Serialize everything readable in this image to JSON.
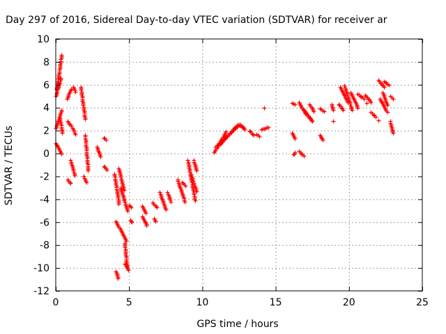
{
  "chart_data": {
    "type": "scatter",
    "title": "Day 297 of 2016, Sidereal Day-to-day VTEC variation (SDTVAR) for receiver ar",
    "xlabel": "GPS time / hours",
    "ylabel": "SDTVAR / TECUs",
    "xlim": [
      0,
      25
    ],
    "ylim": [
      -12,
      10
    ],
    "xticks": [
      0,
      5,
      10,
      15,
      20,
      25
    ],
    "yticks": [
      -12,
      -10,
      -8,
      -6,
      -4,
      -2,
      0,
      2,
      4,
      6,
      8,
      10
    ],
    "grid": true,
    "marker": "+",
    "color": "#ff0000",
    "segments": [
      {
        "x": [
          0.0,
          0.4
        ],
        "y": [
          2.2,
          3.8
        ]
      },
      {
        "x": [
          0.0,
          0.35
        ],
        "y": [
          5.0,
          6.6
        ]
      },
      {
        "x": [
          0.05,
          0.4
        ],
        "y": [
          5.6,
          8.6
        ]
      },
      {
        "x": [
          0.0,
          0.4
        ],
        "y": [
          0.9,
          0.0
        ]
      },
      {
        "x": [
          0.25,
          0.45
        ],
        "y": [
          3.2,
          1.8
        ]
      },
      {
        "x": [
          0.75,
          1.05
        ],
        "y": [
          4.8,
          5.6
        ]
      },
      {
        "x": [
          0.8,
          1.05
        ],
        "y": [
          2.8,
          2.4
        ]
      },
      {
        "x": [
          0.8,
          1.0
        ],
        "y": [
          -2.3,
          -2.6
        ]
      },
      {
        "x": [
          1.0,
          1.3
        ],
        "y": [
          -0.6,
          -1.9
        ]
      },
      {
        "x": [
          1.2,
          1.35
        ],
        "y": [
          5.8,
          5.4
        ]
      },
      {
        "x": [
          1.15,
          1.35
        ],
        "y": [
          2.2,
          1.7
        ]
      },
      {
        "x": [
          1.7,
          2.0
        ],
        "y": [
          5.8,
          3.0
        ]
      },
      {
        "x": [
          2.0,
          2.2
        ],
        "y": [
          1.6,
          -1.5
        ]
      },
      {
        "x": [
          1.9,
          2.1
        ],
        "y": [
          -2.0,
          -2.5
        ]
      },
      {
        "x": [
          2.8,
          3.05
        ],
        "y": [
          0.6,
          -0.3
        ]
      },
      {
        "x": [
          3.3,
          3.4
        ],
        "y": [
          1.4,
          1.2
        ]
      },
      {
        "x": [
          3.3,
          3.45
        ],
        "y": [
          -1.1,
          -1.4
        ]
      },
      {
        "x": [
          4.0,
          4.3
        ],
        "y": [
          -1.8,
          -4.4
        ]
      },
      {
        "x": [
          4.3,
          4.65
        ],
        "y": [
          -1.3,
          -3.2
        ]
      },
      {
        "x": [
          4.4,
          4.9
        ],
        "y": [
          -3.0,
          -5.0
        ]
      },
      {
        "x": [
          4.1,
          4.8
        ],
        "y": [
          -5.9,
          -7.6
        ]
      },
      {
        "x": [
          4.7,
          4.85
        ],
        "y": [
          -7.8,
          -9.9
        ]
      },
      {
        "x": [
          4.7,
          4.95
        ],
        "y": [
          -9.6,
          -10.2
        ]
      },
      {
        "x": [
          4.1,
          4.25
        ],
        "y": [
          -10.3,
          -10.9
        ]
      },
      {
        "x": [
          5.0,
          5.15
        ],
        "y": [
          -4.5,
          -4.7
        ]
      },
      {
        "x": [
          5.1,
          5.2
        ],
        "y": [
          -5.8,
          -6.0
        ]
      },
      {
        "x": [
          5.9,
          6.15
        ],
        "y": [
          -4.6,
          -5.2
        ]
      },
      {
        "x": [
          5.9,
          6.2
        ],
        "y": [
          -5.5,
          -6.3
        ]
      },
      {
        "x": [
          6.6,
          6.9
        ],
        "y": [
          -4.3,
          -4.7
        ]
      },
      {
        "x": [
          6.7,
          6.8
        ],
        "y": [
          -5.7,
          -5.9
        ]
      },
      {
        "x": [
          7.1,
          7.5
        ],
        "y": [
          -3.4,
          -4.9
        ]
      },
      {
        "x": [
          7.6,
          7.85
        ],
        "y": [
          -3.4,
          -4.2
        ]
      },
      {
        "x": [
          8.3,
          8.8
        ],
        "y": [
          -2.3,
          -4.2
        ]
      },
      {
        "x": [
          8.6,
          8.85
        ],
        "y": [
          -2.5,
          -2.8
        ]
      },
      {
        "x": [
          9.0,
          9.5
        ],
        "y": [
          -0.6,
          -4.1
        ]
      },
      {
        "x": [
          9.2,
          9.6
        ],
        "y": [
          -1.8,
          -3.3
        ]
      },
      {
        "x": [
          9.4,
          9.6
        ],
        "y": [
          -0.6,
          -1.5
        ]
      },
      {
        "x": [
          10.8,
          11.6
        ],
        "y": [
          0.1,
          1.9
        ]
      },
      {
        "x": [
          10.9,
          12.5
        ],
        "y": [
          0.6,
          2.5
        ]
      },
      {
        "x": [
          11.2,
          12.3
        ],
        "y": [
          0.8,
          2.4
        ]
      },
      {
        "x": [
          12.4,
          12.8
        ],
        "y": [
          2.5,
          2.3
        ]
      },
      {
        "x": [
          12.6,
          12.9
        ],
        "y": [
          2.5,
          2.1
        ]
      },
      {
        "x": [
          13.2,
          13.5
        ],
        "y": [
          2.0,
          1.6
        ]
      },
      {
        "x": [
          13.7,
          13.9
        ],
        "y": [
          1.7,
          1.5
        ]
      },
      {
        "x": [
          14.0,
          14.5
        ],
        "y": [
          2.1,
          2.3
        ]
      },
      {
        "x": [
          16.1,
          16.3
        ],
        "y": [
          1.8,
          1.3
        ]
      },
      {
        "x": [
          16.1,
          16.3
        ],
        "y": [
          4.4,
          4.3
        ]
      },
      {
        "x": [
          16.2,
          16.3
        ],
        "y": [
          -0.1,
          0.1
        ]
      },
      {
        "x": [
          16.6,
          16.9
        ],
        "y": [
          0.2,
          -0.2
        ]
      },
      {
        "x": [
          16.6,
          17.0
        ],
        "y": [
          4.5,
          3.5
        ]
      },
      {
        "x": [
          16.8,
          17.4
        ],
        "y": [
          4.0,
          3.0
        ]
      },
      {
        "x": [
          17.0,
          17.5
        ],
        "y": [
          3.6,
          2.8
        ]
      },
      {
        "x": [
          17.3,
          17.6
        ],
        "y": [
          4.3,
          3.7
        ]
      },
      {
        "x": [
          18.0,
          18.2
        ],
        "y": [
          1.6,
          1.2
        ]
      },
      {
        "x": [
          18.0,
          18.3
        ],
        "y": [
          3.9,
          3.7
        ]
      },
      {
        "x": [
          18.8,
          18.9
        ],
        "y": [
          4.3,
          3.8
        ]
      },
      {
        "x": [
          19.3,
          19.6
        ],
        "y": [
          4.3,
          3.8
        ]
      },
      {
        "x": [
          19.4,
          19.9
        ],
        "y": [
          5.8,
          4.5
        ]
      },
      {
        "x": [
          19.7,
          20.2
        ],
        "y": [
          5.9,
          3.8
        ]
      },
      {
        "x": [
          20.1,
          20.6
        ],
        "y": [
          5.3,
          4.0
        ]
      },
      {
        "x": [
          20.6,
          21.0
        ],
        "y": [
          5.2,
          4.8
        ]
      },
      {
        "x": [
          21.1,
          21.5
        ],
        "y": [
          5.1,
          4.5
        ]
      },
      {
        "x": [
          21.5,
          21.8
        ],
        "y": [
          3.6,
          3.2
        ]
      },
      {
        "x": [
          22.0,
          22.4
        ],
        "y": [
          6.4,
          5.8
        ]
      },
      {
        "x": [
          22.1,
          22.6
        ],
        "y": [
          4.8,
          3.6
        ]
      },
      {
        "x": [
          22.3,
          22.6
        ],
        "y": [
          5.3,
          4.2
        ]
      },
      {
        "x": [
          22.4,
          22.7
        ],
        "y": [
          6.3,
          6.0
        ]
      },
      {
        "x": [
          22.8,
          23.0
        ],
        "y": [
          5.0,
          4.8
        ]
      },
      {
        "x": [
          22.8,
          23.0
        ],
        "y": [
          2.8,
          1.8
        ]
      }
    ],
    "singles": [
      {
        "x": 14.2,
        "y": 4.0
      },
      {
        "x": 18.9,
        "y": 2.8
      },
      {
        "x": 21.2,
        "y": 4.4
      },
      {
        "x": 22.0,
        "y": 2.9
      }
    ]
  }
}
